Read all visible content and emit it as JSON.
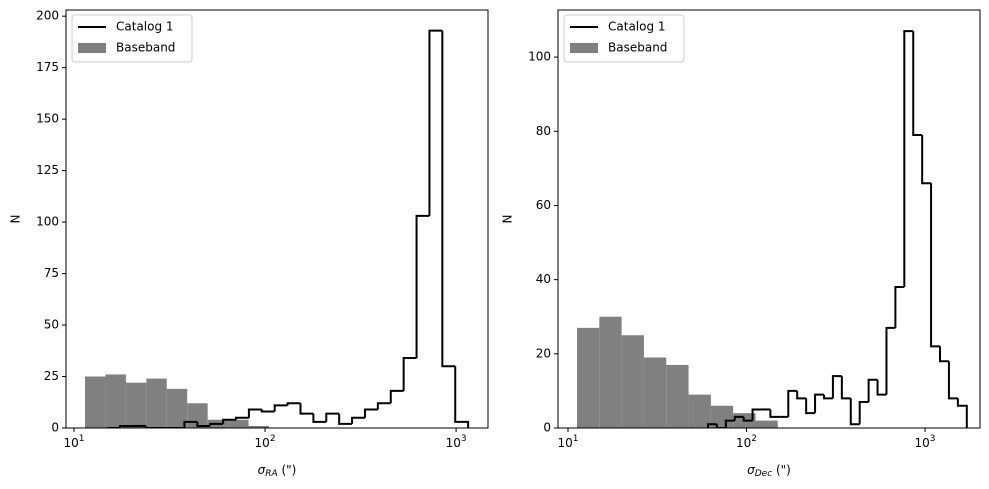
{
  "chart_data": [
    {
      "type": "histogram",
      "xscale": "log",
      "xlim": [
        9.08,
        1469
      ],
      "ylim": [
        0,
        203
      ],
      "xticks": [
        {
          "value": 10,
          "label": "10",
          "exp": "1"
        },
        {
          "value": 100,
          "label": "10",
          "exp": "2"
        },
        {
          "value": 1000,
          "label": "10",
          "exp": "3"
        }
      ],
      "yticks": [
        0,
        25,
        50,
        75,
        100,
        125,
        150,
        175,
        200
      ],
      "xlabel": {
        "main": "σ",
        "sub": "RA",
        "rest": " (\")"
      },
      "ylabel": "N",
      "legend": "upper left",
      "series": [
        {
          "name": "Catalog 1",
          "color": "#000000",
          "style": "step",
          "bins": [
            14.89,
            17.4,
            20.32,
            23.75,
            27.73,
            32.4,
            37.84,
            44.21,
            51.64,
            60.32,
            70.47,
            82.32,
            96.16,
            112.3,
            131.2,
            153.3,
            179.1,
            209.2,
            244.3,
            285.4,
            333.4,
            389.5,
            455.0,
            531.5,
            620.9,
            725.3,
            847.2,
            989.7,
            1156
          ],
          "values": [
            0,
            1,
            1,
            0,
            0,
            0,
            3,
            1,
            2,
            4,
            5,
            9,
            8,
            11,
            12,
            7,
            3,
            7,
            2,
            5,
            9,
            12,
            18,
            34,
            103,
            193,
            30,
            3
          ]
        },
        {
          "name": "Baseband",
          "color": "#808080",
          "style": "filled",
          "bins": [
            11.42,
            14.6,
            18.69,
            23.91,
            30.59,
            39.14,
            50.07,
            64.06,
            81.96,
            104.9
          ],
          "values": [
            25,
            26,
            22,
            24,
            19,
            12,
            4,
            4,
            1
          ]
        }
      ]
    },
    {
      "type": "histogram",
      "xscale": "log",
      "xlim": [
        8.79,
        2032
      ],
      "ylim": [
        0,
        112.7
      ],
      "xticks": [
        {
          "value": 10,
          "label": "10",
          "exp": "1"
        },
        {
          "value": 100,
          "label": "10",
          "exp": "2"
        },
        {
          "value": 1000,
          "label": "10",
          "exp": "3"
        }
      ],
      "yticks": [
        0,
        20,
        40,
        60,
        80,
        100
      ],
      "xlabel": {
        "main": "σ",
        "sub": "Dec",
        "rest": " (\")"
      },
      "ylabel": "N",
      "legend": "upper left",
      "series": [
        {
          "name": "Catalog 1",
          "color": "#000000",
          "style": "step",
          "bins": [
            60.81,
            68.23,
            76.56,
            85.9,
            96.38,
            108.1,
            121.3,
            136.1,
            152.8,
            171.4,
            192.3,
            215.8,
            242.1,
            271.6,
            304.8,
            342.0,
            383.7,
            430.5,
            483.1,
            542.0,
            608.1,
            682.3,
            765.6,
            859.0,
            963.8,
            1081,
            1213,
            1361,
            1528,
            1714
          ],
          "values": [
            1,
            0,
            2,
            3,
            2,
            5,
            5,
            3,
            3,
            10,
            8,
            4,
            9,
            8,
            14,
            8,
            1,
            7,
            13,
            9,
            27,
            38,
            107,
            79,
            66,
            22,
            18,
            8,
            6
          ]
        },
        {
          "name": "Baseband",
          "color": "#808080",
          "style": "filled",
          "bins": [
            11.23,
            14.98,
            19.97,
            26.63,
            35.51,
            47.35,
            63.15,
            84.2,
            112.3,
            149.7
          ],
          "values": [
            27,
            30,
            25,
            19,
            17,
            9,
            6,
            4,
            2
          ]
        }
      ]
    }
  ]
}
